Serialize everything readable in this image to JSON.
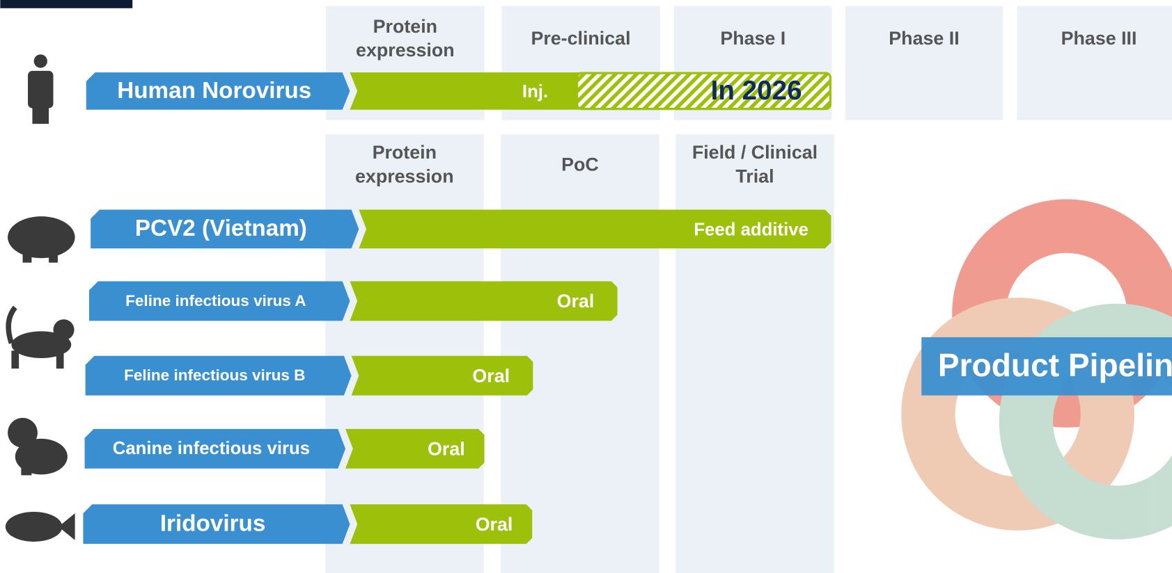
{
  "top_stages": [
    [
      "Protein",
      "expression"
    ],
    [
      "Pre-clinical"
    ],
    [
      "Phase I"
    ],
    [
      "Phase II"
    ],
    [
      "Phase III"
    ]
  ],
  "animal_stages": [
    [
      "Protein",
      "expression"
    ],
    [
      "PoC"
    ],
    [
      "Field / Clinical",
      "Trial"
    ]
  ],
  "pipelines": [
    {
      "name": "Human Norovirus",
      "route": "Inj.",
      "note": "In 2026"
    },
    {
      "name": "PCV2 (Vietnam)",
      "route": "Feed additive"
    },
    {
      "name": "Feline infectious virus A",
      "route": "Oral"
    },
    {
      "name": "Feline infectious virus B",
      "route": "Oral"
    },
    {
      "name": "Canine infectious virus",
      "route": "Oral"
    },
    {
      "name": "Iridovirus",
      "route": "Oral"
    }
  ],
  "title": "Product Pipeline"
}
